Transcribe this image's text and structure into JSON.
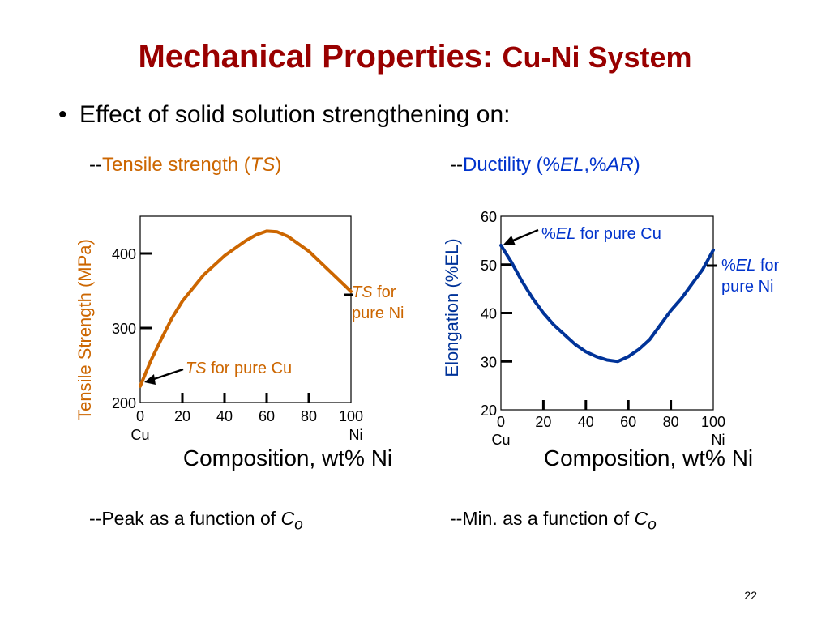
{
  "title": {
    "main": "Mechanical Properties:",
    "sub": "Cu-Ni System"
  },
  "bullet": "Effect of solid solution strengthening on:",
  "left_header": {
    "prefix": "--",
    "text": "Tensile strength (",
    "italic": "TS",
    "close": ")"
  },
  "right_header": {
    "prefix": "--",
    "text": "Ductility (%",
    "italic1": "EL",
    "sep": ",%",
    "italic2": "AR",
    "close": ")"
  },
  "left_footer": {
    "text": "--Peak as a function of ",
    "italic": "C",
    "sub": "o"
  },
  "right_footer": {
    "text": "--Min. as a function of ",
    "italic": "C",
    "sub": "o"
  },
  "page_number": "22",
  "colors": {
    "title": "#990000",
    "ts": "#cc6600",
    "el": "#003399",
    "annotation_blue": "#0033cc"
  },
  "chart_data": [
    {
      "type": "line",
      "ylabel": "Tensile Strength (MPa)",
      "xlabel": "Composition, wt% Ni",
      "xlim": [
        0,
        100
      ],
      "ylim": [
        200,
        450
      ],
      "xticks": [
        "0",
        "20",
        "40",
        "60",
        "80",
        "100"
      ],
      "yticks": [
        "200",
        "300",
        "400"
      ],
      "x_end_labels": {
        "left": "Cu",
        "right": "Ni"
      },
      "series": [
        {
          "x": [
            0,
            5,
            10,
            15,
            20,
            30,
            40,
            50,
            55,
            60,
            65,
            70,
            80,
            90,
            100
          ],
          "y": [
            222,
            256,
            285,
            313,
            336,
            371,
            397,
            417,
            425,
            430,
            429,
            423,
            403,
            376,
            349
          ]
        }
      ],
      "annotations": [
        {
          "italic": "TS",
          "text": " for pure Cu"
        },
        {
          "italic": "TS",
          "text": " for",
          "line2": "pure Ni"
        }
      ],
      "grid": false
    },
    {
      "type": "line",
      "ylabel": "Elongation (%EL)",
      "xlabel": "Composition, wt% Ni",
      "xlim": [
        0,
        100
      ],
      "ylim": [
        20,
        60
      ],
      "xticks": [
        "0",
        "20",
        "40",
        "60",
        "80",
        "100"
      ],
      "yticks": [
        "20",
        "30",
        "40",
        "50",
        "60"
      ],
      "x_end_labels": {
        "left": "Cu",
        "right": "Ni"
      },
      "series": [
        {
          "x": [
            0,
            5,
            10,
            15,
            20,
            25,
            30,
            35,
            40,
            45,
            50,
            55,
            60,
            65,
            70,
            75,
            80,
            85,
            90,
            95,
            100
          ],
          "y": [
            54,
            50.5,
            46.5,
            43,
            40,
            37.5,
            35.5,
            33.5,
            32,
            31,
            30.3,
            30,
            31,
            32.5,
            34.5,
            37.5,
            40.5,
            43,
            46,
            49,
            53
          ]
        }
      ],
      "annotations": [
        {
          "prefix": "%",
          "italic": "EL",
          "text": " for pure Cu"
        },
        {
          "prefix": "%",
          "italic": "EL",
          "text": " for",
          "line2": "pure Ni"
        }
      ],
      "grid": false
    }
  ]
}
